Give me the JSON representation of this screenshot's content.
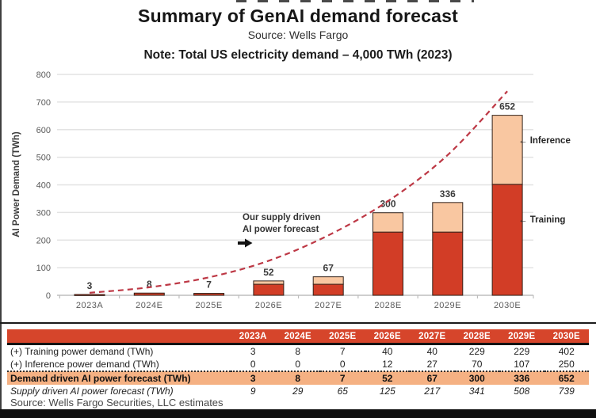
{
  "header": {
    "title": "Summary of GenAI demand forecast",
    "source": "Source: Wells Fargo",
    "note": "Note: Total US electricity demand – 4,000 TWh (2023)"
  },
  "chart_data": {
    "type": "bar",
    "stacked": true,
    "title": "",
    "xlabel": "",
    "ylabel": "AI Power Demand (TWh)",
    "ylim": [
      0,
      800
    ],
    "ytick_step": 100,
    "grid": true,
    "categories": [
      "2023A",
      "2024E",
      "2025E",
      "2026E",
      "2027E",
      "2028E",
      "2029E",
      "2030E"
    ],
    "series": [
      {
        "name": "Training",
        "values": [
          3,
          8,
          7,
          40,
          40,
          229,
          229,
          402
        ],
        "color": "#d23d26"
      },
      {
        "name": "Inference",
        "values": [
          0,
          0,
          0,
          12,
          27,
          70,
          107,
          250
        ],
        "color": "#f9c7a1"
      }
    ],
    "bar_totals": [
      3,
      8,
      7,
      52,
      67,
      300,
      336,
      652
    ],
    "line_series": {
      "name": "Supply driven AI power forecast",
      "values": [
        9,
        29,
        65,
        125,
        217,
        341,
        508,
        739
      ],
      "style": "dashed",
      "color": "#bd3845"
    },
    "annotations": {
      "supply_label_lines": [
        "Our supply driven",
        "AI power forecast"
      ],
      "arrow_left_char": "←",
      "inference_label": "Inference",
      "training_label": "Training"
    }
  },
  "table": {
    "header": [
      "",
      "2023A",
      "2024E",
      "2025E",
      "2026E",
      "2027E",
      "2028E",
      "2029E",
      "2030E"
    ],
    "rows": [
      {
        "label": "(+) Training power demand (TWh)",
        "values": [
          3,
          8,
          7,
          40,
          40,
          229,
          229,
          402
        ],
        "style": "plain"
      },
      {
        "label": "(+) Inference power demand (TWh)",
        "values": [
          0,
          0,
          0,
          12,
          27,
          70,
          107,
          250
        ],
        "style": "dotted"
      },
      {
        "label": "Demand driven AI power forecast (TWh)",
        "values": [
          3,
          8,
          7,
          52,
          67,
          300,
          336,
          652
        ],
        "style": "highlight"
      },
      {
        "label": "Supply driven AI power forecast (TWh)",
        "values": [
          9,
          29,
          65,
          125,
          217,
          341,
          508,
          739
        ],
        "style": "italic"
      }
    ],
    "footer": "Source: Wells Fargo Securities, LLC estimates"
  },
  "colors": {
    "accent_red": "#d6452b",
    "bar_training": "#d23d26",
    "bar_inference": "#f9c7a1",
    "bar_outline": "#33231b",
    "dashed_line": "#bd3845",
    "highlight_row": "#f5b183",
    "gridline": "#e3e3e3",
    "axis_text": "#5a5a5a",
    "value_label": "#3b3b3b"
  }
}
